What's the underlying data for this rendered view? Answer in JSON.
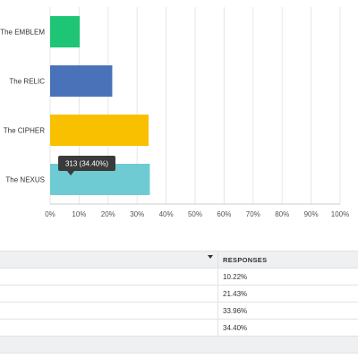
{
  "chart_data": {
    "type": "bar",
    "orientation": "horizontal",
    "categories": [
      "The EMBLEM",
      "The RELIC",
      "The CIPHER",
      "The NEXUS"
    ],
    "values": [
      10.22,
      21.43,
      33.96,
      34.4
    ],
    "xlim": [
      0,
      100
    ],
    "x_ticks": [
      "0%",
      "10%",
      "20%",
      "30%",
      "40%",
      "50%",
      "60%",
      "70%",
      "80%",
      "90%",
      "100%"
    ],
    "grid": true,
    "colors": [
      "#1dc575",
      "#4a72b8",
      "#f9c000",
      "#6fcbd3"
    ],
    "tooltip": {
      "category": "The NEXUS",
      "text": "313 (34.40%)"
    }
  },
  "table": {
    "header": "RESPONSES",
    "rows": [
      "10.22%",
      "21.43%",
      "33.96%",
      "34.40%"
    ]
  }
}
